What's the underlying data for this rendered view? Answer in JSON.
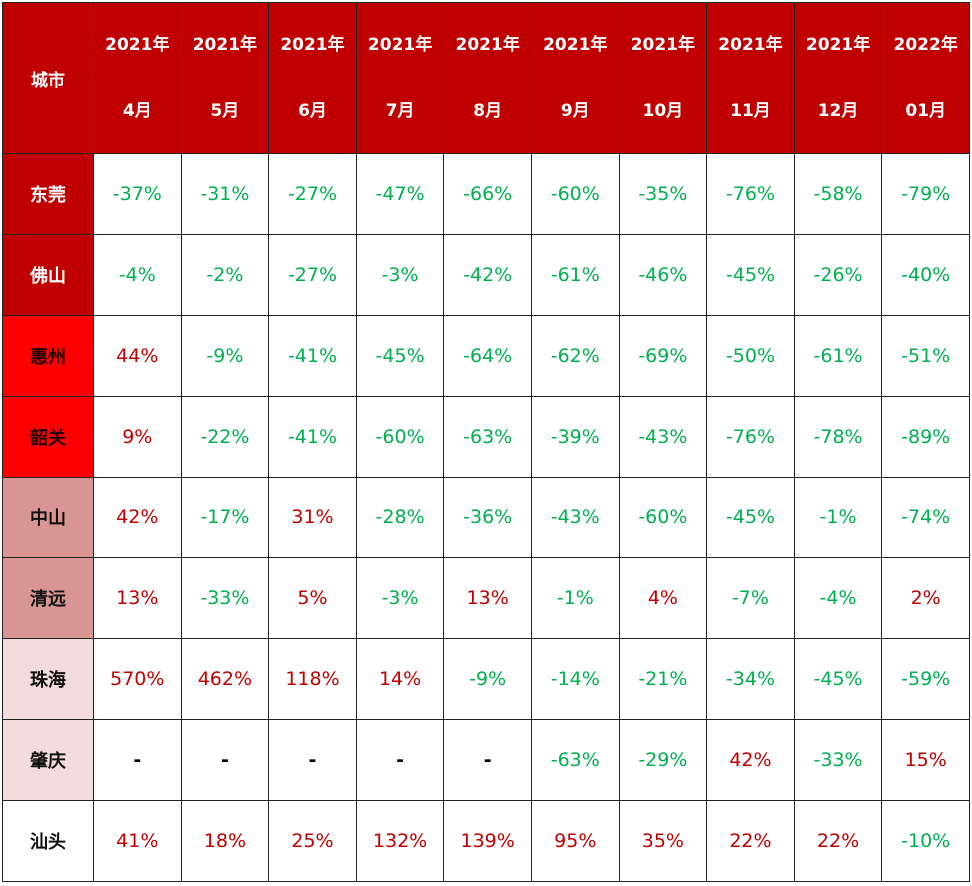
{
  "table": {
    "corner": "城市",
    "columns": [
      {
        "year": "2021年",
        "month": "4月"
      },
      {
        "year": "2021年",
        "month": "5月"
      },
      {
        "year": "2021年",
        "month": "6月"
      },
      {
        "year": "2021年",
        "month": "7月"
      },
      {
        "year": "2021年",
        "month": "8月"
      },
      {
        "year": "2021年",
        "month": "9月"
      },
      {
        "year": "2021年",
        "month": "10月"
      },
      {
        "year": "2021年",
        "month": "11月"
      },
      {
        "year": "2021年",
        "month": "12月"
      },
      {
        "year": "2022年",
        "month": "01月"
      }
    ],
    "rows": [
      {
        "city": "东莞",
        "values": [
          "-37%",
          "-31%",
          "-27%",
          "-47%",
          "-66%",
          "-60%",
          "-35%",
          "-76%",
          "-58%",
          "-79%"
        ]
      },
      {
        "city": "佛山",
        "values": [
          "-4%",
          "-2%",
          "-27%",
          "-3%",
          "-42%",
          "-61%",
          "-46%",
          "-45%",
          "-26%",
          "-40%"
        ]
      },
      {
        "city": "惠州",
        "values": [
          "44%",
          "-9%",
          "-41%",
          "-45%",
          "-64%",
          "-62%",
          "-69%",
          "-50%",
          "-61%",
          "-51%"
        ]
      },
      {
        "city": "韶关",
        "values": [
          "9%",
          "-22%",
          "-41%",
          "-60%",
          "-63%",
          "-39%",
          "-43%",
          "-76%",
          "-78%",
          "-89%"
        ]
      },
      {
        "city": "中山",
        "values": [
          "42%",
          "-17%",
          "31%",
          "-28%",
          "-36%",
          "-43%",
          "-60%",
          "-45%",
          "-1%",
          "-74%"
        ]
      },
      {
        "city": "清远",
        "values": [
          "13%",
          "-33%",
          "5%",
          "-3%",
          "13%",
          "-1%",
          "4%",
          "-7%",
          "-4%",
          "2%"
        ]
      },
      {
        "city": "珠海",
        "values": [
          "570%",
          "462%",
          "118%",
          "14%",
          "-9%",
          "-14%",
          "-21%",
          "-34%",
          "-45%",
          "-59%"
        ]
      },
      {
        "city": "肇庆",
        "values": [
          "-",
          "-",
          "-",
          "-",
          "-",
          "-63%",
          "-29%",
          "42%",
          "-33%",
          "15%"
        ]
      },
      {
        "city": "汕头",
        "values": [
          "41%",
          "18%",
          "25%",
          "132%",
          "139%",
          "95%",
          "35%",
          "22%",
          "22%",
          "-10%"
        ]
      }
    ]
  }
}
